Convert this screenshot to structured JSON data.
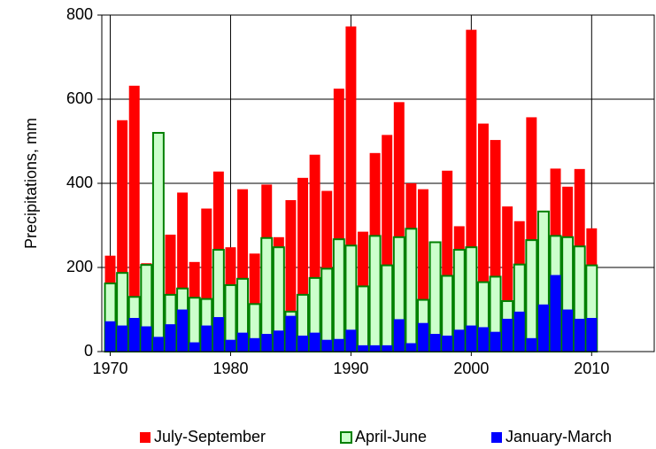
{
  "chart_data": {
    "type": "bar",
    "overlap": true,
    "y_label": "Precipitations, mm",
    "x": [
      1970,
      1971,
      1972,
      1973,
      1974,
      1975,
      1976,
      1977,
      1978,
      1979,
      1980,
      1981,
      1982,
      1983,
      1984,
      1985,
      1986,
      1987,
      1988,
      1989,
      1990,
      1991,
      1992,
      1993,
      1994,
      1995,
      1996,
      1997,
      1998,
      1999,
      2000,
      2001,
      2002,
      2003,
      2004,
      2005,
      2006,
      2007,
      2008,
      2009,
      2010
    ],
    "series": [
      {
        "name": "July-September",
        "color": "#ff0000",
        "values": [
          228,
          550,
          632,
          210,
          462,
          278,
          378,
          213,
          340,
          428,
          248,
          386,
          233,
          397,
          272,
          360,
          413,
          468,
          382,
          625,
          773,
          285,
          472,
          515,
          593,
          400,
          386,
          262,
          430,
          298,
          765,
          542,
          503,
          345,
          310,
          557,
          310,
          435,
          392,
          434,
          293
        ]
      },
      {
        "name": "April-June",
        "color": "#ccffcc",
        "stroke": "#008000",
        "values": [
          162,
          187,
          130,
          206,
          520,
          135,
          150,
          128,
          125,
          242,
          158,
          173,
          113,
          270,
          248,
          95,
          135,
          175,
          197,
          267,
          252,
          155,
          275,
          205,
          272,
          292,
          123,
          260,
          180,
          242,
          248,
          165,
          178,
          120,
          207,
          265,
          333,
          275,
          272,
          250,
          205
        ]
      },
      {
        "name": "January-March",
        "color": "#0000ff",
        "values": [
          72,
          62,
          80,
          60,
          35,
          65,
          100,
          22,
          62,
          82,
          28,
          45,
          32,
          42,
          50,
          85,
          38,
          45,
          28,
          30,
          52,
          15,
          15,
          15,
          77,
          20,
          68,
          42,
          38,
          52,
          62,
          58,
          47,
          78,
          95,
          32,
          112,
          182,
          100,
          78,
          80
        ]
      }
    ],
    "xlim": [
      1969.3,
      2015.2
    ],
    "xticks": [
      1970,
      1980,
      1990,
      2000,
      2010
    ],
    "ylim": [
      0,
      800
    ],
    "yticks": [
      0,
      200,
      400,
      600,
      800
    ],
    "grid": true,
    "legend": "bottom"
  }
}
